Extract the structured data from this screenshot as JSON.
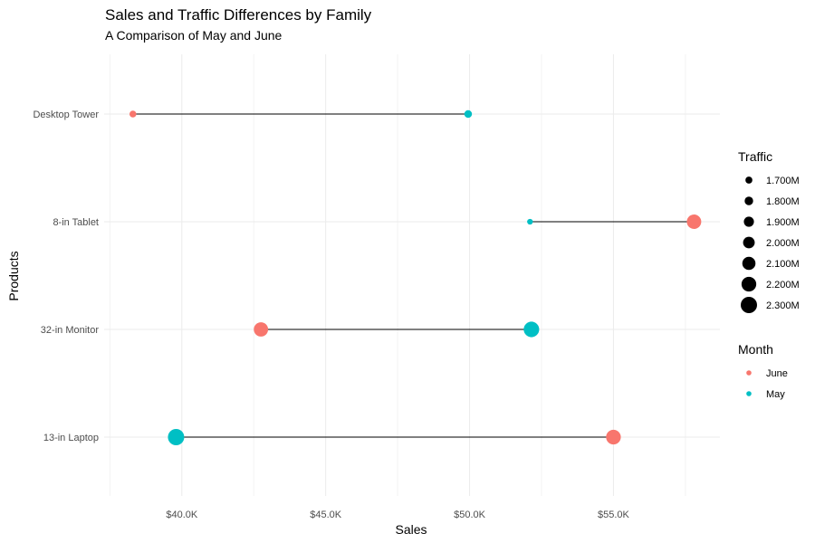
{
  "chart_data": {
    "type": "scatter",
    "title": "Sales and Traffic Differences by Family",
    "subtitle": "A Comparison of May and June",
    "xlabel": "Sales",
    "ylabel": "Products",
    "xlim": [
      37300,
      58700
    ],
    "xticks": [
      40000,
      45000,
      50000,
      55000
    ],
    "xtick_labels": [
      "$40.0K",
      "$45.0K",
      "$50.0K",
      "$55.0K"
    ],
    "categories": [
      "Desktop Tower",
      "8-in Tablet",
      "32-in Monitor",
      "13-in Laptop"
    ],
    "grid": true,
    "legend_position": "right",
    "size_legend": {
      "title": "Traffic",
      "entries": [
        {
          "label": "1.700M",
          "value": 1700000
        },
        {
          "label": "1.800M",
          "value": 1800000
        },
        {
          "label": "1.900M",
          "value": 1900000
        },
        {
          "label": "2.000M",
          "value": 2000000
        },
        {
          "label": "2.100M",
          "value": 2100000
        },
        {
          "label": "2.200M",
          "value": 2200000
        },
        {
          "label": "2.300M",
          "value": 2300000
        }
      ]
    },
    "color_legend": {
      "title": "Month",
      "entries": [
        {
          "label": "June",
          "color": "#F8766D"
        },
        {
          "label": "May",
          "color": "#00BFC4"
        }
      ]
    },
    "series": [
      {
        "name": "June",
        "color": "#F8766D",
        "points": [
          {
            "product": "Desktop Tower",
            "sales": 38300,
            "traffic": 1690000
          },
          {
            "product": "8-in Tablet",
            "sales": 57800,
            "traffic": 2180000
          },
          {
            "product": "32-in Monitor",
            "sales": 42750,
            "traffic": 2170000
          },
          {
            "product": "13-in Laptop",
            "sales": 55000,
            "traffic": 2200000
          }
        ]
      },
      {
        "name": "May",
        "color": "#00BFC4",
        "points": [
          {
            "product": "Desktop Tower",
            "sales": 49950,
            "traffic": 1740000
          },
          {
            "product": "8-in Tablet",
            "sales": 52100,
            "traffic": 1620000
          },
          {
            "product": "32-in Monitor",
            "sales": 52150,
            "traffic": 2250000
          },
          {
            "product": "13-in Laptop",
            "sales": 39800,
            "traffic": 2300000
          }
        ]
      }
    ]
  }
}
